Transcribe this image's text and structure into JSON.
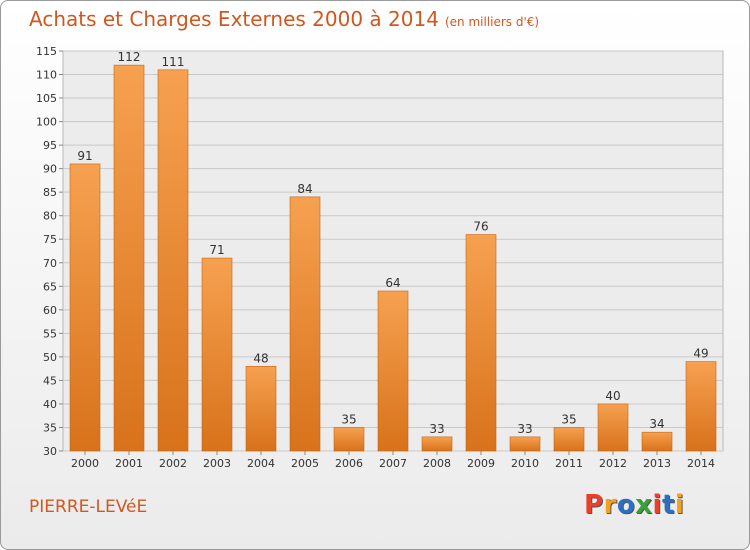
{
  "chart_data": {
    "type": "bar",
    "title": "Achats et Charges Externes 2000 à 2014",
    "subtitle": "(en milliers d'€)",
    "categories": [
      "2000",
      "2001",
      "2002",
      "2003",
      "2004",
      "2005",
      "2006",
      "2007",
      "2008",
      "2009",
      "2010",
      "2011",
      "2012",
      "2013",
      "2014"
    ],
    "values": [
      91,
      112,
      111,
      71,
      48,
      84,
      35,
      64,
      33,
      76,
      33,
      35,
      40,
      34,
      49
    ],
    "ylim": [
      30,
      115
    ],
    "yticks": [
      30,
      35,
      40,
      45,
      50,
      55,
      60,
      65,
      70,
      75,
      80,
      85,
      90,
      95,
      100,
      105,
      110,
      115
    ],
    "grid": true,
    "bar_color": "#e8872f",
    "xlabel": "",
    "ylabel": ""
  },
  "footer": {
    "commune": "PIERRE-LEVéE",
    "logo_text": "Proxiti"
  },
  "colors": {
    "title": "#d2571e",
    "logo": [
      "#e8402a",
      "#f4a21d",
      "#2b6fc0",
      "#3aa13a",
      "#e8402a",
      "#2b6fc0",
      "#f4a21d"
    ]
  }
}
